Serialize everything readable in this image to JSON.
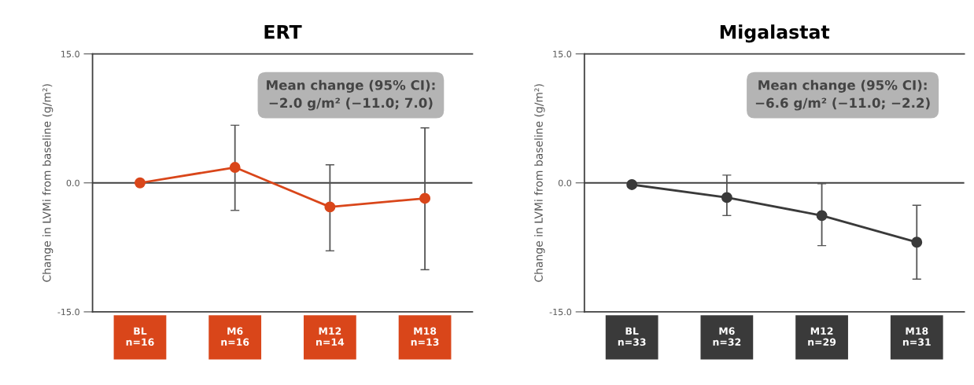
{
  "chart_data": [
    {
      "type": "line",
      "title": "ERT",
      "ylabel": "Change in LVMi from baseline (g/m²)",
      "categories": [
        "BL\nn=16",
        "M6\nn=16",
        "M12\nn=14",
        "M18\nn=13"
      ],
      "series": [
        {
          "color": "#d9461a",
          "values": [
            0,
            1.8,
            -2.8,
            -1.8
          ],
          "errors": [
            null,
            [
              -3.2,
              6.7
            ],
            [
              -7.9,
              2.1
            ],
            [
              -10.1,
              6.4
            ]
          ]
        }
      ],
      "ylim": [
        -15,
        15
      ],
      "yticks": [
        {
          "value": -15,
          "label": "-15.0"
        },
        {
          "value": 0,
          "label": "0.0"
        },
        {
          "value": 15,
          "label": "15.0"
        }
      ],
      "ref_lines": [
        {
          "axis": "y",
          "value": 0,
          "color": "#404040"
        }
      ],
      "marker": "circle",
      "grid": false,
      "legend": false,
      "annotations": [
        "Mean change (95% CI):\n−2.0 g/m² (−11.0; 7.0)"
      ]
    },
    {
      "type": "line",
      "title": "Migalastat",
      "ylabel": "Change in LVMi from baseline (g/m²)",
      "categories": [
        "BL\nn=33",
        "M6\nn=32",
        "M12\nn=29",
        "M18\nn=31"
      ],
      "series": [
        {
          "color": "#3a3a3a",
          "values": [
            -0.2,
            -1.7,
            -3.8,
            -6.9
          ],
          "errors": [
            null,
            [
              -3.8,
              0.9
            ],
            [
              -7.3,
              -0.1
            ],
            [
              -11.2,
              -2.6
            ]
          ]
        }
      ],
      "ylim": [
        -15,
        15
      ],
      "yticks": [
        {
          "value": -15,
          "label": "-15.0"
        },
        {
          "value": 0,
          "label": "0.0"
        },
        {
          "value": 15,
          "label": "15.0"
        }
      ],
      "ref_lines": [
        {
          "axis": "y",
          "value": 0,
          "color": "#404040"
        }
      ],
      "marker": "circle",
      "grid": false,
      "legend": false,
      "annotations": [
        "Mean change (95% CI):\n−6.6 g/m² (−11.0; −2.2)"
      ]
    }
  ]
}
